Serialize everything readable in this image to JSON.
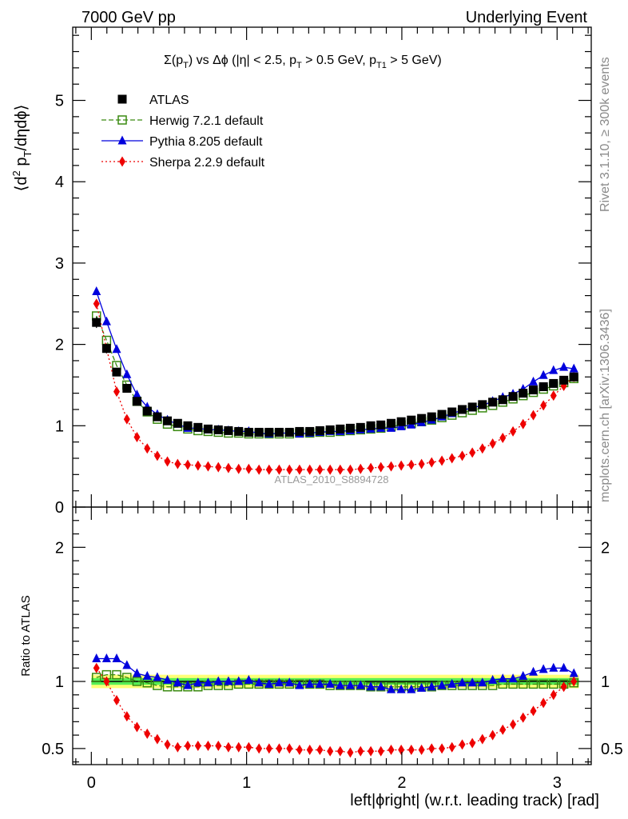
{
  "header": {
    "left": "7000 GeV pp",
    "right": "Underlying Event"
  },
  "side": {
    "rivet": "Rivet 3.1.10, ≥ 300k events",
    "mcplots": "mcplots.cern.ch [arXiv:1306.3436]"
  },
  "plot_title": "Σ(pT) vs Δφ (|η| < 2.5, pT > 0.5 GeV, pT1 > 5 GeV)",
  "watermark": "ATLAS_2010_S8894728",
  "colors": {
    "atlas": "#000000",
    "herwig": "#3a8a10",
    "pythia": "#0000dd",
    "sherpa": "#ee0000",
    "band_inner": "#55ee55",
    "band_outer": "#ffff77"
  },
  "chart_data": [
    {
      "type": "scatter",
      "panel": "main",
      "title": "Σ(pT) vs Δφ (|η| < 2.5, pT > 0.5 GeV, pT1 > 5 GeV)",
      "ylabel": "⟨d² pT/dηdφ⟩",
      "xlabel": "",
      "xlim": [
        -0.12,
        3.22
      ],
      "ylim": [
        0,
        5.9
      ],
      "yticks": [
        0,
        1,
        2,
        3,
        4,
        5
      ],
      "xticks": [
        0,
        1,
        2,
        3
      ],
      "legend": [
        {
          "key": "atlas",
          "label": "ATLAS"
        },
        {
          "key": "herwig",
          "label": "Herwig 7.2.1 default"
        },
        {
          "key": "pythia",
          "label": "Pythia 8.205 default"
        },
        {
          "key": "sherpa",
          "label": "Sherpa 2.2.9 default"
        }
      ],
      "x": [
        0.033,
        0.098,
        0.163,
        0.229,
        0.294,
        0.36,
        0.425,
        0.49,
        0.556,
        0.621,
        0.687,
        0.752,
        0.818,
        0.883,
        0.949,
        1.014,
        1.08,
        1.145,
        1.21,
        1.276,
        1.341,
        1.407,
        1.472,
        1.538,
        1.603,
        1.668,
        1.734,
        1.8,
        1.865,
        1.931,
        1.996,
        2.061,
        2.127,
        2.192,
        2.258,
        2.323,
        2.389,
        2.454,
        2.519,
        2.585,
        2.65,
        2.716,
        2.781,
        2.847,
        2.912,
        2.977,
        3.043,
        3.108
      ],
      "series": [
        {
          "name": "ATLAS",
          "key": "atlas",
          "values": [
            2.27,
            1.95,
            1.66,
            1.46,
            1.3,
            1.18,
            1.11,
            1.06,
            1.03,
            1.0,
            0.98,
            0.96,
            0.95,
            0.94,
            0.93,
            0.92,
            0.92,
            0.92,
            0.92,
            0.92,
            0.93,
            0.93,
            0.94,
            0.95,
            0.96,
            0.97,
            0.98,
            1.0,
            1.01,
            1.03,
            1.05,
            1.07,
            1.09,
            1.11,
            1.14,
            1.17,
            1.2,
            1.23,
            1.26,
            1.29,
            1.32,
            1.36,
            1.4,
            1.44,
            1.48,
            1.52,
            1.56,
            1.6
          ]
        },
        {
          "name": "Herwig 7.2.1 default",
          "key": "herwig",
          "values": [
            2.35,
            2.05,
            1.74,
            1.5,
            1.3,
            1.17,
            1.08,
            1.02,
            0.99,
            0.96,
            0.94,
            0.93,
            0.92,
            0.91,
            0.91,
            0.9,
            0.9,
            0.9,
            0.9,
            0.9,
            0.91,
            0.91,
            0.92,
            0.92,
            0.93,
            0.94,
            0.95,
            0.96,
            0.97,
            0.99,
            1.01,
            1.03,
            1.05,
            1.07,
            1.1,
            1.13,
            1.16,
            1.19,
            1.22,
            1.25,
            1.29,
            1.33,
            1.37,
            1.41,
            1.45,
            1.49,
            1.53,
            1.58
          ]
        },
        {
          "name": "Pythia 8.205 default",
          "key": "pythia",
          "values": [
            2.65,
            2.28,
            1.94,
            1.63,
            1.38,
            1.23,
            1.14,
            1.07,
            1.02,
            0.97,
            0.97,
            0.95,
            0.95,
            0.94,
            0.93,
            0.93,
            0.91,
            0.9,
            0.91,
            0.91,
            0.9,
            0.91,
            0.92,
            0.93,
            0.93,
            0.94,
            0.95,
            0.96,
            0.97,
            0.97,
            0.99,
            1.01,
            1.04,
            1.07,
            1.11,
            1.15,
            1.19,
            1.22,
            1.25,
            1.3,
            1.35,
            1.39,
            1.45,
            1.54,
            1.62,
            1.68,
            1.72,
            1.7
          ]
        },
        {
          "name": "Sherpa 2.2.9 default",
          "key": "sherpa",
          "values": [
            2.5,
            1.95,
            1.42,
            1.08,
            0.86,
            0.72,
            0.63,
            0.56,
            0.53,
            0.52,
            0.51,
            0.5,
            0.49,
            0.48,
            0.47,
            0.47,
            0.46,
            0.46,
            0.46,
            0.46,
            0.46,
            0.46,
            0.46,
            0.46,
            0.46,
            0.46,
            0.47,
            0.48,
            0.49,
            0.5,
            0.51,
            0.52,
            0.53,
            0.55,
            0.57,
            0.6,
            0.63,
            0.67,
            0.72,
            0.78,
            0.85,
            0.93,
            1.02,
            1.13,
            1.25,
            1.37,
            1.49,
            1.6
          ]
        }
      ]
    },
    {
      "type": "scatter",
      "panel": "ratio",
      "ylabel": "Ratio to ATLAS",
      "xlabel": "left|ϕright| (w.r.t. leading track) [rad]",
      "xlim": [
        -0.12,
        3.22
      ],
      "ylim": [
        0.38,
        2.3
      ],
      "yticks": [
        0.5,
        1,
        2
      ],
      "ytick_labels": [
        "0.5",
        "1",
        "2"
      ],
      "xticks": [
        0,
        1,
        2,
        3
      ],
      "xtick_labels": [
        "0",
        "1",
        "2",
        "3"
      ],
      "band_inner": 0.025,
      "band_outer": 0.05,
      "series": [
        {
          "name": "Herwig 7.2.1 default",
          "key": "herwig",
          "values": [
            1.03,
            1.05,
            1.05,
            1.03,
            1.0,
            0.99,
            0.97,
            0.96,
            0.96,
            0.96,
            0.96,
            0.97,
            0.97,
            0.97,
            0.98,
            0.98,
            0.98,
            0.98,
            0.98,
            0.98,
            0.98,
            0.98,
            0.98,
            0.97,
            0.97,
            0.97,
            0.97,
            0.96,
            0.96,
            0.96,
            0.96,
            0.96,
            0.96,
            0.96,
            0.97,
            0.97,
            0.97,
            0.97,
            0.97,
            0.97,
            0.98,
            0.98,
            0.98,
            0.98,
            0.98,
            0.98,
            0.98,
            0.99
          ]
        },
        {
          "name": "Pythia 8.205 default",
          "key": "pythia",
          "values": [
            1.17,
            1.17,
            1.17,
            1.12,
            1.06,
            1.04,
            1.03,
            1.01,
            0.99,
            0.97,
            0.99,
            0.99,
            1.0,
            1.0,
            1.0,
            1.01,
            0.99,
            0.98,
            0.99,
            0.99,
            0.97,
            0.98,
            0.98,
            0.98,
            0.97,
            0.97,
            0.97,
            0.96,
            0.96,
            0.94,
            0.94,
            0.94,
            0.95,
            0.96,
            0.97,
            0.98,
            0.99,
            0.99,
            0.99,
            1.01,
            1.02,
            1.02,
            1.04,
            1.07,
            1.09,
            1.1,
            1.1,
            1.06
          ]
        },
        {
          "name": "Sherpa 2.2.9 default",
          "key": "sherpa",
          "values": [
            1.1,
            1.0,
            0.86,
            0.74,
            0.66,
            0.61,
            0.57,
            0.53,
            0.51,
            0.52,
            0.52,
            0.52,
            0.52,
            0.51,
            0.51,
            0.51,
            0.5,
            0.5,
            0.5,
            0.5,
            0.49,
            0.49,
            0.49,
            0.48,
            0.48,
            0.47,
            0.48,
            0.48,
            0.48,
            0.49,
            0.49,
            0.49,
            0.49,
            0.5,
            0.5,
            0.51,
            0.53,
            0.54,
            0.57,
            0.6,
            0.64,
            0.68,
            0.73,
            0.78,
            0.84,
            0.9,
            0.96,
            1.0
          ]
        }
      ]
    }
  ]
}
